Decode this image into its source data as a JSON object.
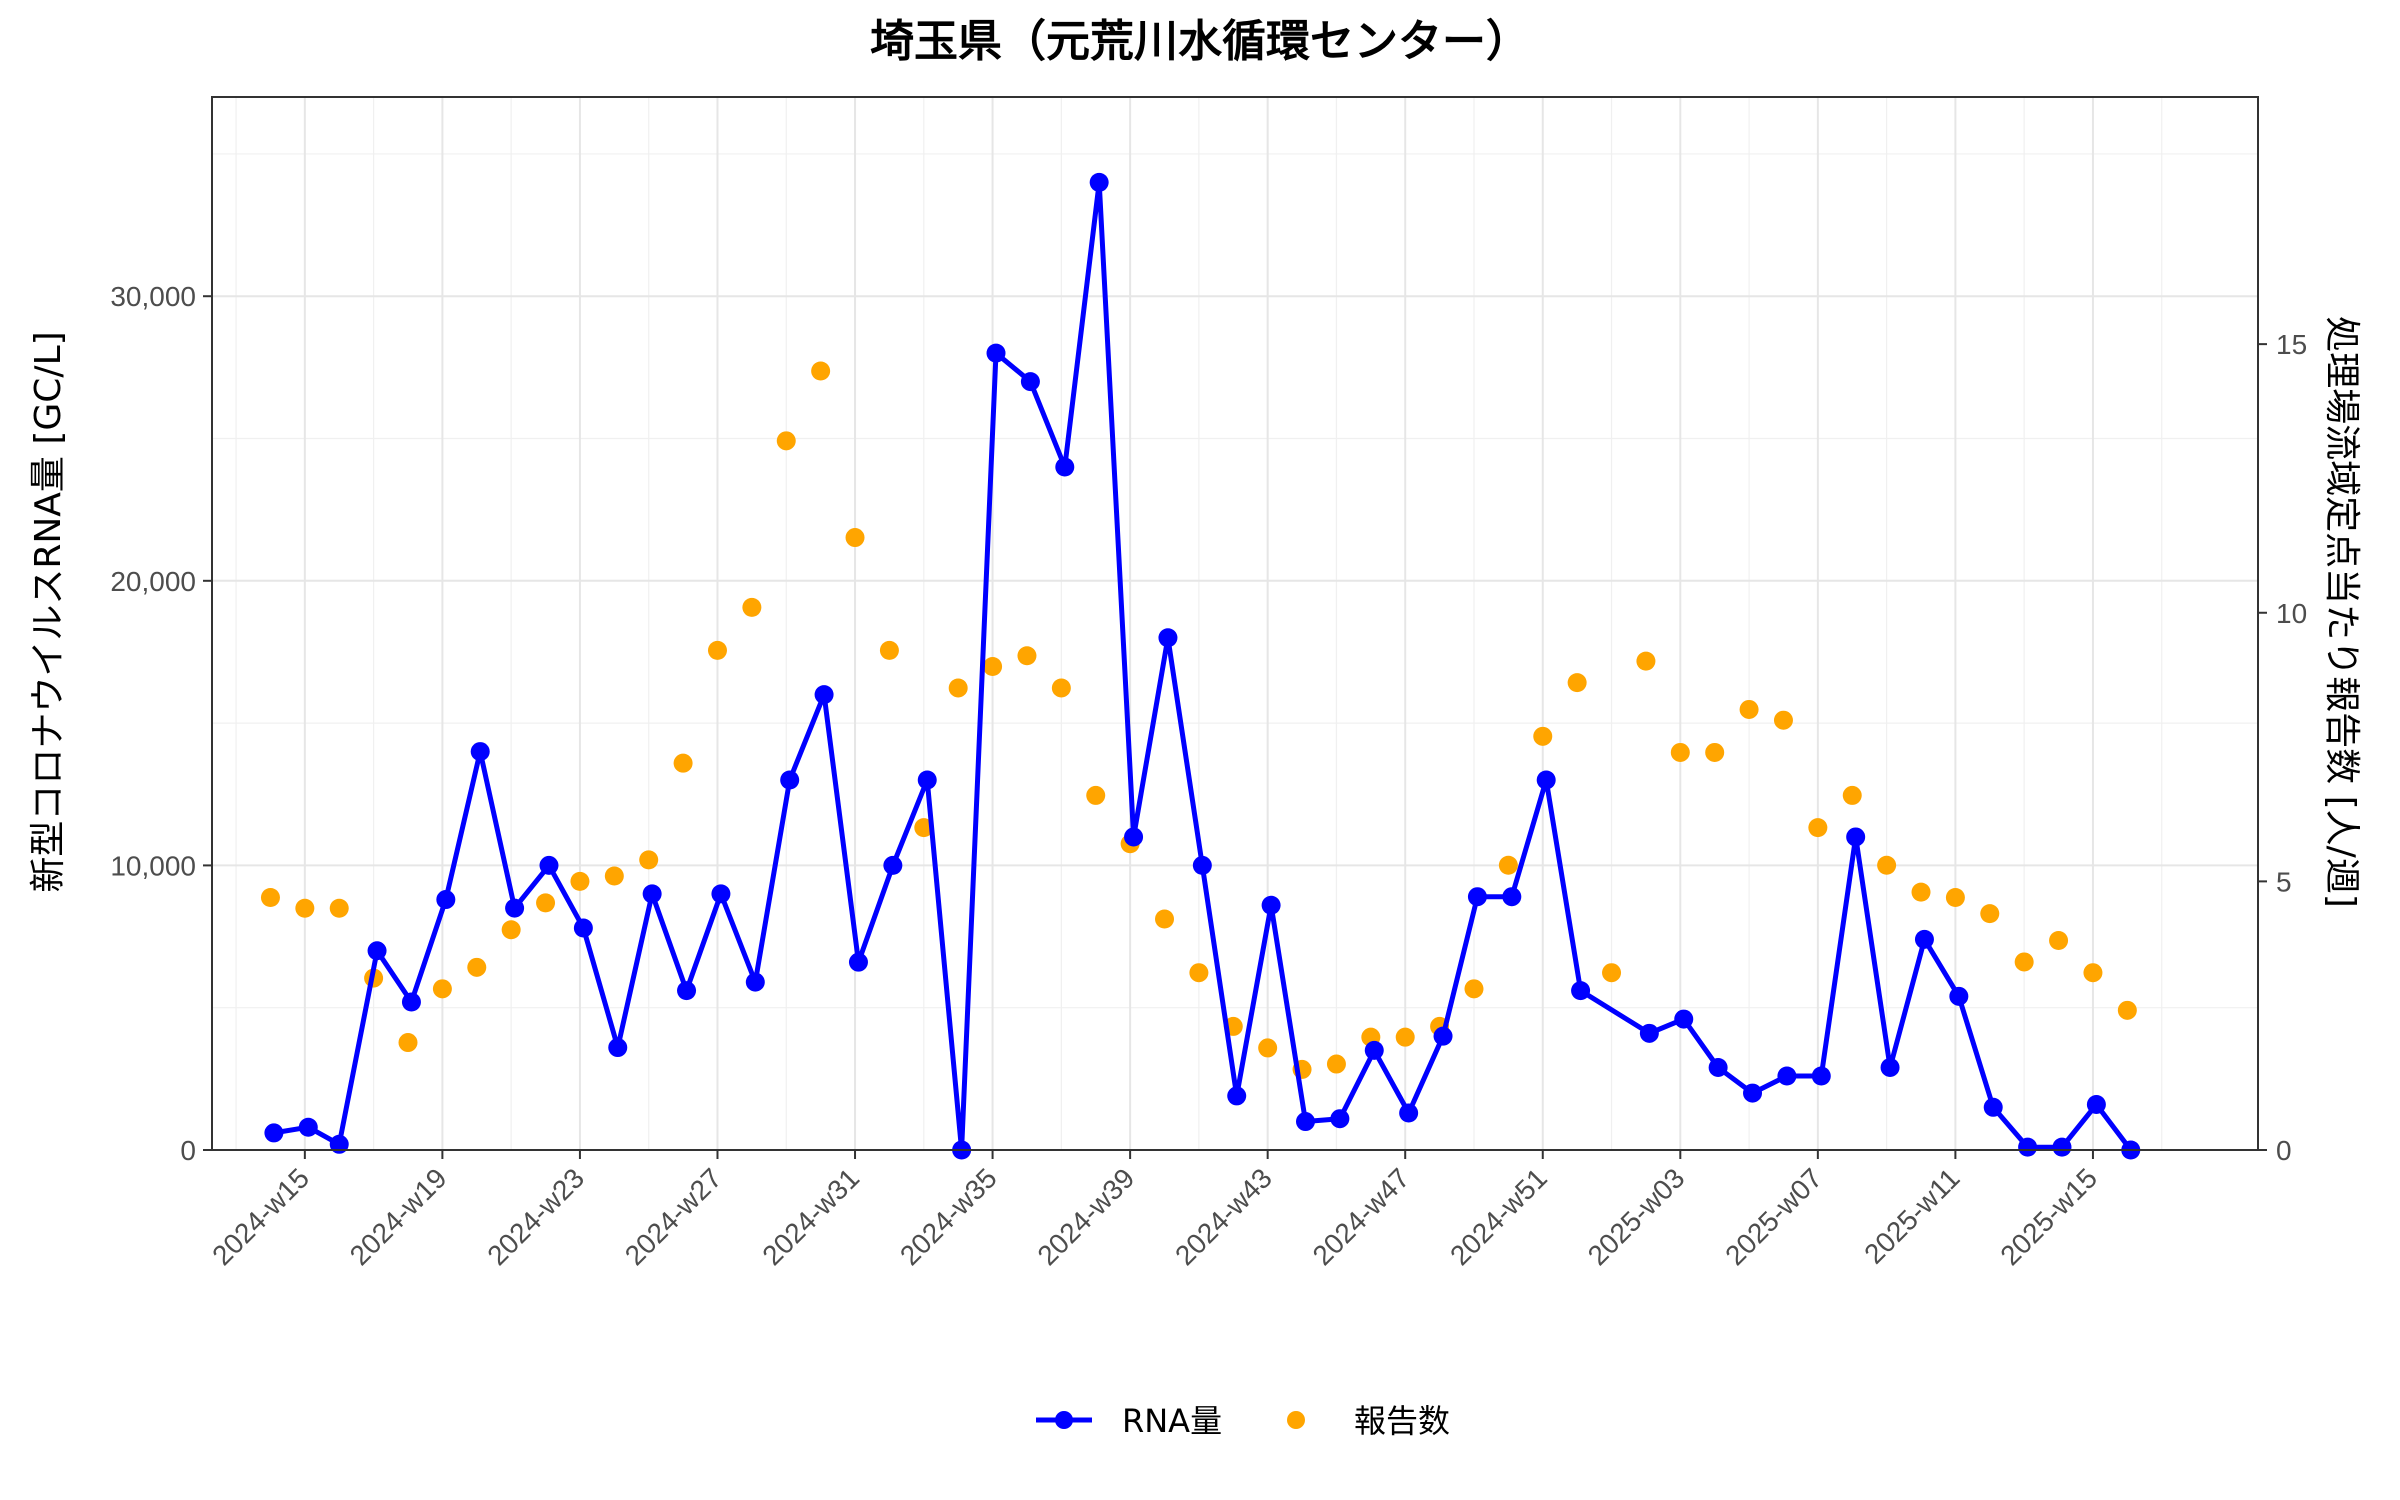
{
  "chart_data": {
    "type": "line",
    "title": "埼玉県（元荒川水循環センター）",
    "xlabel": "",
    "ylabel": "新型コロナウイルスRNA量 [GC/L]",
    "y2label": "処理場流域定点当たり報告数 [人/週]",
    "ylim": [
      0,
      37000
    ],
    "y2lim": [
      0,
      19.6
    ],
    "x_index_range": [
      -2.7,
      56.8
    ],
    "yticks": [
      0,
      10000,
      20000,
      30000
    ],
    "ytick_labels": [
      "0",
      "10,000",
      "20,000",
      "30,000"
    ],
    "y2ticks": [
      0,
      5,
      10,
      15
    ],
    "y2tick_labels": [
      "0",
      "5",
      "10",
      "15"
    ],
    "x_tick_positions": [
      0,
      4,
      8,
      12,
      16,
      20,
      24,
      28,
      32,
      36,
      40,
      44,
      48,
      52
    ],
    "x_tick_labels": [
      "2024-w15",
      "2024-w19",
      "2024-w23",
      "2024-w27",
      "2024-w31",
      "2024-w35",
      "2024-w39",
      "2024-w43",
      "2024-w47",
      "2024-w51",
      "2025-w03",
      "2025-w07",
      "2025-w11",
      "2025-w15"
    ],
    "legend": [
      "RNA量",
      "報告数"
    ],
    "legend_position": "bottom",
    "colors": {
      "rna": "#0000FF",
      "reports": "#FFA500"
    },
    "series": [
      {
        "name": "RNA量",
        "axis": "left",
        "x": [
          -0.9,
          0.1,
          1.0,
          2.1,
          3.1,
          4.1,
          5.1,
          6.1,
          7.1,
          8.1,
          9.1,
          10.1,
          11.1,
          12.1,
          13.1,
          14.1,
          15.1,
          16.1,
          17.1,
          18.1,
          19.1,
          20.1,
          21.1,
          22.1,
          23.1,
          24.1,
          25.1,
          26.1,
          27.1,
          28.1,
          29.1,
          30.1,
          31.1,
          32.1,
          33.1,
          34.1,
          35.1,
          36.1,
          37.1,
          39.1,
          40.1,
          41.1,
          42.1,
          43.1,
          44.1,
          45.1,
          46.1,
          47.1,
          48.1,
          49.1,
          50.1,
          51.1,
          52.1,
          53.1
        ],
        "values": [
          600,
          800,
          200,
          7000,
          5200,
          8800,
          14000,
          8500,
          10000,
          7800,
          3600,
          9000,
          5600,
          9000,
          5900,
          13000,
          16000,
          6600,
          10000,
          13000,
          0,
          28000,
          27000,
          24000,
          34000,
          11000,
          18000,
          10000,
          1900,
          8600,
          1000,
          1100,
          3500,
          1300,
          4000,
          8900,
          8900,
          13000,
          5600,
          4100,
          4600,
          2900,
          2000,
          2600,
          2600,
          11000,
          2900,
          7400,
          5400,
          1500,
          100,
          100,
          1600,
          0
        ]
      },
      {
        "name": "報告数",
        "axis": "right",
        "x": [
          -1.0,
          0.0,
          1.0,
          2.0,
          3.0,
          4.0,
          5.0,
          6.0,
          7.0,
          8.0,
          9.0,
          10.0,
          11.0,
          12.0,
          13.0,
          14.0,
          15.0,
          16.0,
          17.0,
          18.0,
          19.0,
          20.0,
          21.0,
          22.0,
          23.0,
          24.0,
          25.0,
          26.0,
          27.0,
          28.0,
          29.0,
          30.0,
          31.0,
          32.0,
          33.0,
          34.0,
          35.0,
          36.0,
          37.0,
          38.0,
          39.0,
          40.0,
          41.0,
          42.0,
          43.0,
          44.0,
          45.0,
          46.0,
          47.0,
          48.0,
          49.0,
          50.0,
          51.0,
          52.0,
          53.0
        ],
        "values": [
          4.7,
          4.5,
          4.5,
          3.2,
          2.0,
          3.0,
          3.4,
          4.1,
          4.6,
          5.0,
          5.1,
          5.4,
          7.2,
          9.3,
          10.1,
          13.2,
          14.5,
          11.4,
          9.3,
          6.0,
          8.6,
          9.0,
          9.2,
          8.6,
          6.6,
          5.7,
          4.3,
          3.3,
          2.3,
          1.9,
          1.5,
          1.6,
          2.1,
          2.1,
          2.3,
          3.0,
          5.3,
          7.7,
          8.7,
          3.3,
          9.1,
          7.4,
          7.4,
          8.2,
          8.0,
          6.0,
          6.6,
          5.3,
          4.8,
          4.7,
          4.4,
          3.5,
          3.9,
          3.3,
          2.6
        ]
      }
    ]
  }
}
